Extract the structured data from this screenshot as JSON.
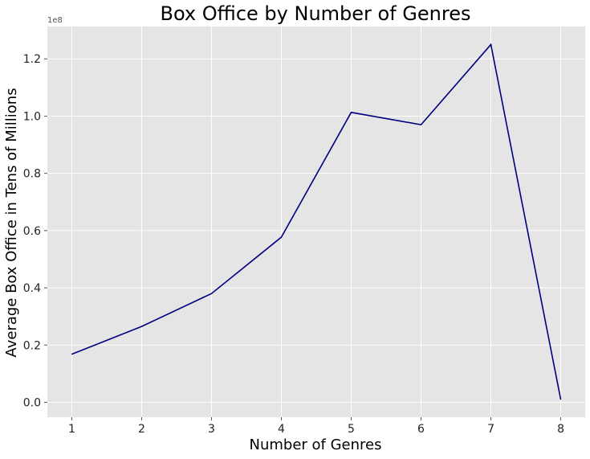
{
  "chart_data": {
    "type": "line",
    "title": "Box Office by Number of Genres",
    "xlabel": "Number of Genres",
    "ylabel": "Average Box Office in Tens of Millions",
    "y_offset_label": "1e8",
    "x": [
      1,
      2,
      3,
      4,
      5,
      6,
      7,
      8
    ],
    "x_tick_labels": [
      "1",
      "2",
      "3",
      "4",
      "5",
      "6",
      "7",
      "8"
    ],
    "series": [
      {
        "values": [
          16800000,
          26500000,
          38000000,
          57700000,
          101300000,
          97000000,
          125000000,
          1000000
        ],
        "color": "#000080"
      }
    ],
    "y_tick_values": [
      0,
      20000000,
      40000000,
      60000000,
      80000000,
      100000000,
      120000000
    ],
    "y_tick_labels": [
      "0.0",
      "0.2",
      "0.4",
      "0.6",
      "0.8",
      "1.0",
      "1.2"
    ],
    "xlim": [
      0.65,
      8.35
    ],
    "ylim": [
      -5200000,
      131300000
    ],
    "grid": true,
    "background_color": "#e5e5e5",
    "grid_color": "#ffffff"
  }
}
